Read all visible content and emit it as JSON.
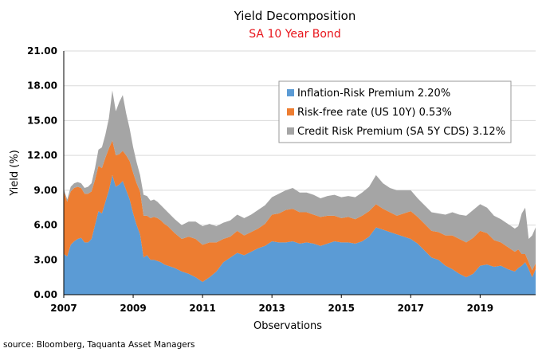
{
  "chart_data": {
    "type": "area",
    "stacked": true,
    "title": "Yield Decomposition",
    "subtitle": "SA 10 Year Bond",
    "xlabel": "Observations",
    "ylabel": "Yield (%)",
    "ylim": [
      0,
      21
    ],
    "xlim": [
      2007.0,
      2020.6
    ],
    "y_ticks": [
      "0.00",
      "3.00",
      "6.00",
      "9.00",
      "12.00",
      "15.00",
      "18.00",
      "21.00"
    ],
    "x_ticks": [
      "2007",
      "2009",
      "2011",
      "2013",
      "2015",
      "2017",
      "2019"
    ],
    "legend_position": "top-right",
    "source": "source: Bloomberg, Taquanta Asset Managers",
    "x": [
      2007.0,
      2007.1,
      2007.2,
      2007.3,
      2007.4,
      2007.5,
      2007.6,
      2007.7,
      2007.8,
      2007.9,
      2008.0,
      2008.1,
      2008.2,
      2008.3,
      2008.4,
      2008.5,
      2008.6,
      2008.7,
      2008.8,
      2008.9,
      2009.0,
      2009.1,
      2009.2,
      2009.3,
      2009.4,
      2009.5,
      2009.6,
      2009.7,
      2009.8,
      2009.9,
      2010.0,
      2010.2,
      2010.4,
      2010.6,
      2010.8,
      2011.0,
      2011.2,
      2011.4,
      2011.6,
      2011.8,
      2012.0,
      2012.2,
      2012.4,
      2012.6,
      2012.8,
      2013.0,
      2013.2,
      2013.4,
      2013.6,
      2013.8,
      2014.0,
      2014.2,
      2014.4,
      2014.6,
      2014.8,
      2015.0,
      2015.2,
      2015.4,
      2015.6,
      2015.8,
      2016.0,
      2016.2,
      2016.4,
      2016.6,
      2016.8,
      2017.0,
      2017.2,
      2017.4,
      2017.6,
      2017.8,
      2018.0,
      2018.2,
      2018.4,
      2018.6,
      2018.8,
      2019.0,
      2019.2,
      2019.4,
      2019.6,
      2019.8,
      2020.0,
      2020.1,
      2020.2,
      2020.3,
      2020.4,
      2020.5,
      2020.6
    ],
    "series": [
      {
        "name": "Inflation-Risk Premium 2.20%",
        "color": "#5b9bd5",
        "values": [
          3.5,
          3.3,
          4.3,
          4.6,
          4.8,
          4.9,
          4.5,
          4.5,
          4.8,
          6.0,
          7.2,
          7.0,
          8.0,
          9.0,
          10.3,
          9.3,
          9.5,
          9.8,
          9.0,
          8.2,
          7.0,
          6.0,
          5.2,
          3.2,
          3.4,
          3.0,
          3.0,
          2.9,
          2.8,
          2.6,
          2.5,
          2.3,
          2.0,
          1.8,
          1.5,
          1.1,
          1.5,
          2.0,
          2.8,
          3.2,
          3.6,
          3.4,
          3.7,
          4.0,
          4.2,
          4.6,
          4.5,
          4.5,
          4.6,
          4.4,
          4.5,
          4.4,
          4.2,
          4.4,
          4.6,
          4.5,
          4.5,
          4.4,
          4.6,
          5.0,
          5.8,
          5.6,
          5.4,
          5.2,
          5.0,
          4.8,
          4.4,
          3.8,
          3.2,
          3.0,
          2.5,
          2.2,
          1.8,
          1.5,
          1.8,
          2.5,
          2.6,
          2.4,
          2.5,
          2.2,
          2.0,
          2.3,
          2.5,
          2.8,
          2.2,
          1.5,
          2.2
        ]
      },
      {
        "name": "Risk-free rate (US 10Y) 0.53%",
        "color": "#ed7d31",
        "values": [
          5.4,
          4.7,
          4.6,
          4.6,
          4.5,
          4.3,
          4.2,
          4.2,
          4.1,
          3.9,
          3.9,
          3.9,
          3.8,
          3.6,
          3.0,
          2.7,
          2.6,
          2.6,
          3.0,
          3.3,
          3.5,
          3.6,
          3.7,
          3.6,
          3.4,
          3.6,
          3.7,
          3.7,
          3.6,
          3.5,
          3.4,
          3.0,
          2.8,
          3.2,
          3.3,
          3.2,
          3.0,
          2.5,
          2.0,
          1.8,
          1.9,
          1.7,
          1.7,
          1.7,
          1.9,
          2.3,
          2.5,
          2.8,
          2.8,
          2.7,
          2.6,
          2.5,
          2.5,
          2.4,
          2.2,
          2.1,
          2.2,
          2.1,
          2.2,
          2.2,
          2.0,
          1.8,
          1.7,
          1.6,
          2.0,
          2.4,
          2.3,
          2.3,
          2.3,
          2.4,
          2.6,
          2.9,
          3.0,
          3.0,
          3.1,
          3.0,
          2.7,
          2.3,
          2.0,
          1.9,
          1.7,
          1.6,
          1.0,
          0.7,
          0.6,
          0.6,
          0.5
        ]
      },
      {
        "name": "Credit Risk Premium (SA 5Y CDS) 3.12%",
        "color": "#a5a5a5",
        "values": [
          0.2,
          0.2,
          0.4,
          0.4,
          0.4,
          0.4,
          0.5,
          0.6,
          0.7,
          1.0,
          1.4,
          1.8,
          2.0,
          2.6,
          4.3,
          3.8,
          4.5,
          4.8,
          3.6,
          2.8,
          2.2,
          1.8,
          1.4,
          1.8,
          1.7,
          1.5,
          1.5,
          1.4,
          1.3,
          1.3,
          1.2,
          1.2,
          1.2,
          1.3,
          1.5,
          1.6,
          1.6,
          1.4,
          1.4,
          1.4,
          1.4,
          1.5,
          1.5,
          1.6,
          1.6,
          1.5,
          1.7,
          1.7,
          1.8,
          1.7,
          1.7,
          1.7,
          1.6,
          1.7,
          1.8,
          1.8,
          1.8,
          1.9,
          2.0,
          2.1,
          2.5,
          2.2,
          2.1,
          2.2,
          2.0,
          1.8,
          1.6,
          1.6,
          1.6,
          1.6,
          1.8,
          2.0,
          2.1,
          2.3,
          2.4,
          2.3,
          2.2,
          2.1,
          2.0,
          2.0,
          2.0,
          2.0,
          3.5,
          4.0,
          2.0,
          3.0,
          3.1
        ]
      }
    ]
  }
}
